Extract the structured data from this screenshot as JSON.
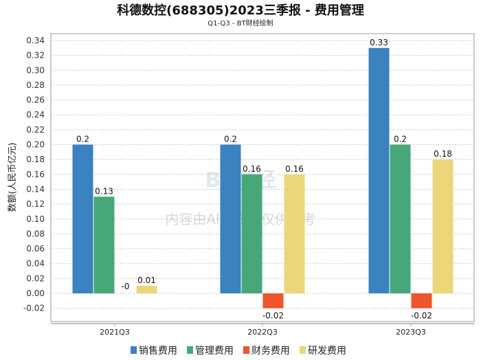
{
  "chart_data": {
    "type": "bar",
    "title": "科德数控(688305)2023三季报 - 费用管理",
    "subtitle": "Q1-Q3 - BT财经绘制",
    "ylabel": "数额(人民币亿元)",
    "xlabel": "",
    "ylim": [
      -0.038,
      0.35
    ],
    "yticks": [
      -0.02,
      0.0,
      0.02,
      0.04,
      0.06,
      0.08,
      0.1,
      0.12,
      0.14,
      0.16,
      0.18,
      0.2,
      0.22,
      0.24,
      0.26,
      0.28,
      0.3,
      0.32,
      0.34
    ],
    "grid": true,
    "legend_position": "bottom",
    "categories": [
      "2021Q3",
      "2022Q3",
      "2023Q3"
    ],
    "series": [
      {
        "name": "销售费用",
        "color": "#3a82c0",
        "values": [
          0.2,
          0.2,
          0.33
        ],
        "labels": [
          "0.2",
          "0.2",
          "0.33"
        ]
      },
      {
        "name": "管理费用",
        "color": "#46a877",
        "values": [
          0.13,
          0.16,
          0.2
        ],
        "labels": [
          "0.13",
          "0.16",
          "0.2"
        ]
      },
      {
        "name": "财务费用",
        "color": "#f0542a",
        "values": [
          -0.0,
          -0.02,
          -0.02
        ],
        "labels": [
          "-0",
          "-0.02",
          "-0.02"
        ]
      },
      {
        "name": "研发费用",
        "color": "#edd677",
        "values": [
          0.01,
          0.16,
          0.18
        ],
        "labels": [
          "0.01",
          "0.16",
          "0.18"
        ]
      }
    ]
  },
  "watermark": {
    "logo": "BT财经 BUSINESSTIMES",
    "notice": "内容由AI生成，仅供参考"
  }
}
